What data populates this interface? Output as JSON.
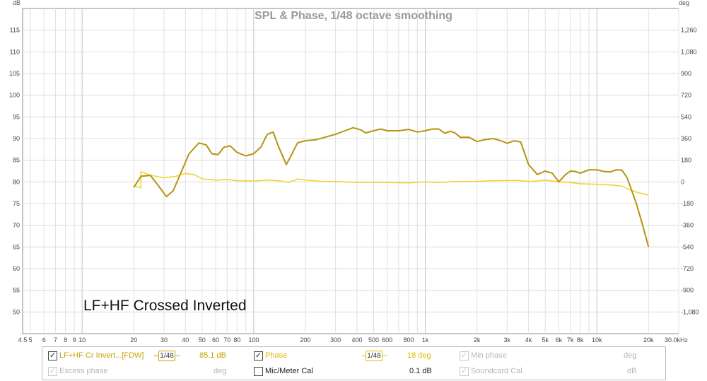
{
  "chart_data": {
    "type": "line",
    "title": "SPL & Phase, 1/48 octave smoothing",
    "annotation": "LF+HF Crossed Inverted",
    "y_left_unit": "dB",
    "y_right_unit": "deg",
    "x_unit": "Hz",
    "x_scale": "log",
    "grid": true,
    "xlim": [
      4.5,
      30000
    ],
    "ylim_left": [
      45,
      120
    ],
    "ylim_right": [
      -1260,
      1440
    ],
    "y_left_ticks": [
      "115",
      "110",
      "105",
      "100",
      "95",
      "90",
      "85",
      "80",
      "75",
      "70",
      "65",
      "60",
      "55",
      "50"
    ],
    "y_right_ticks": [
      "1,260",
      "1,080",
      "900",
      "720",
      "540",
      "360",
      "180",
      "0",
      "-180",
      "-360",
      "-540",
      "-720",
      "-900",
      "-1,080"
    ],
    "x_tick_labels": [
      {
        "v": 4.5,
        "t": "4.5"
      },
      {
        "v": 5,
        "t": "5"
      },
      {
        "v": 6,
        "t": "6"
      },
      {
        "v": 7,
        "t": "7"
      },
      {
        "v": 8,
        "t": "8"
      },
      {
        "v": 9,
        "t": "9"
      },
      {
        "v": 10,
        "t": "10"
      },
      {
        "v": 20,
        "t": "20"
      },
      {
        "v": 30,
        "t": "30"
      },
      {
        "v": 40,
        "t": "40"
      },
      {
        "v": 50,
        "t": "50"
      },
      {
        "v": 60,
        "t": "60"
      },
      {
        "v": 70,
        "t": "70"
      },
      {
        "v": 80,
        "t": "80"
      },
      {
        "v": 100,
        "t": "100"
      },
      {
        "v": 200,
        "t": "200"
      },
      {
        "v": 300,
        "t": "300"
      },
      {
        "v": 400,
        "t": "400"
      },
      {
        "v": 500,
        "t": "500"
      },
      {
        "v": 600,
        "t": "600"
      },
      {
        "v": 800,
        "t": "800"
      },
      {
        "v": 1000,
        "t": "1k"
      },
      {
        "v": 2000,
        "t": "2k"
      },
      {
        "v": 3000,
        "t": "3k"
      },
      {
        "v": 4000,
        "t": "4k"
      },
      {
        "v": 5000,
        "t": "5k"
      },
      {
        "v": 6000,
        "t": "6k"
      },
      {
        "v": 7000,
        "t": "7k"
      },
      {
        "v": 8000,
        "t": "8k"
      },
      {
        "v": 10000,
        "t": "10k"
      },
      {
        "v": 20000,
        "t": "20k"
      },
      {
        "v": 30000,
        "t": "30.0k"
      }
    ],
    "series": [
      {
        "name": "LF+HF Cr Invert...[FDW]",
        "axis": "left",
        "color": "#b59410",
        "points": [
          [
            20,
            78.7
          ],
          [
            22,
            81.3
          ],
          [
            25,
            81.5
          ],
          [
            28,
            79.0
          ],
          [
            31,
            76.6
          ],
          [
            34,
            78.0
          ],
          [
            38,
            82.5
          ],
          [
            42,
            86.5
          ],
          [
            48,
            89.0
          ],
          [
            53,
            88.5
          ],
          [
            57,
            86.5
          ],
          [
            62,
            86.3
          ],
          [
            67,
            88.0
          ],
          [
            73,
            88.3
          ],
          [
            80,
            86.8
          ],
          [
            90,
            86.0
          ],
          [
            100,
            86.5
          ],
          [
            110,
            88.0
          ],
          [
            120,
            91.0
          ],
          [
            130,
            91.5
          ],
          [
            140,
            88.0
          ],
          [
            155,
            84.0
          ],
          [
            165,
            86.0
          ],
          [
            180,
            89.0
          ],
          [
            200,
            89.5
          ],
          [
            230,
            89.7
          ],
          [
            260,
            90.3
          ],
          [
            300,
            91.0
          ],
          [
            340,
            91.8
          ],
          [
            380,
            92.5
          ],
          [
            420,
            92.0
          ],
          [
            450,
            91.3
          ],
          [
            500,
            91.8
          ],
          [
            550,
            92.2
          ],
          [
            600,
            91.8
          ],
          [
            700,
            91.8
          ],
          [
            800,
            92.1
          ],
          [
            900,
            91.5
          ],
          [
            1000,
            91.8
          ],
          [
            1100,
            92.2
          ],
          [
            1200,
            92.2
          ],
          [
            1300,
            91.2
          ],
          [
            1400,
            91.7
          ],
          [
            1500,
            91.2
          ],
          [
            1600,
            90.3
          ],
          [
            1800,
            90.3
          ],
          [
            2000,
            89.3
          ],
          [
            2200,
            89.7
          ],
          [
            2500,
            90.0
          ],
          [
            2800,
            89.4
          ],
          [
            3000,
            88.9
          ],
          [
            3300,
            89.5
          ],
          [
            3600,
            89.2
          ],
          [
            4000,
            84.0
          ],
          [
            4500,
            81.7
          ],
          [
            5000,
            82.5
          ],
          [
            5500,
            82.0
          ],
          [
            6000,
            80.0
          ],
          [
            6500,
            81.5
          ],
          [
            7000,
            82.5
          ],
          [
            7500,
            82.4
          ],
          [
            8000,
            82.0
          ],
          [
            9000,
            82.8
          ],
          [
            10000,
            82.8
          ],
          [
            11000,
            82.4
          ],
          [
            12000,
            82.3
          ],
          [
            13000,
            82.8
          ],
          [
            14000,
            82.7
          ],
          [
            15000,
            81.0
          ],
          [
            17000,
            75.0
          ],
          [
            18500,
            70.0
          ],
          [
            20000,
            65.0
          ]
        ]
      },
      {
        "name": "Phase",
        "axis": "right",
        "color": "#f2d337",
        "points": [
          [
            20,
            -30
          ],
          [
            22,
            -50
          ],
          [
            22,
            85
          ],
          [
            25,
            55
          ],
          [
            30,
            35
          ],
          [
            35,
            45
          ],
          [
            40,
            70
          ],
          [
            45,
            60
          ],
          [
            50,
            25
          ],
          [
            60,
            15
          ],
          [
            70,
            20
          ],
          [
            80,
            10
          ],
          [
            100,
            8
          ],
          [
            120,
            15
          ],
          [
            140,
            10
          ],
          [
            160,
            -5
          ],
          [
            180,
            25
          ],
          [
            200,
            15
          ],
          [
            250,
            5
          ],
          [
            300,
            3
          ],
          [
            400,
            -5
          ],
          [
            500,
            -3
          ],
          [
            600,
            -5
          ],
          [
            800,
            -8
          ],
          [
            1000,
            0
          ],
          [
            1200,
            -5
          ],
          [
            1500,
            3
          ],
          [
            2000,
            5
          ],
          [
            2500,
            10
          ],
          [
            3000,
            12
          ],
          [
            3500,
            12
          ],
          [
            4000,
            3
          ],
          [
            4500,
            8
          ],
          [
            5000,
            15
          ],
          [
            6000,
            0
          ],
          [
            7000,
            -5
          ],
          [
            8000,
            -15
          ],
          [
            10000,
            -20
          ],
          [
            12000,
            -25
          ],
          [
            14000,
            -35
          ],
          [
            15000,
            -55
          ],
          [
            17000,
            -85
          ],
          [
            20000,
            -110
          ]
        ]
      }
    ]
  },
  "legend": {
    "items": [
      {
        "label": "LF+HF Cr Invert...[FDW]",
        "checked": true,
        "enabled": true,
        "smoothing": "1/48",
        "value": "85.1 dB",
        "color": "#c8a200"
      },
      {
        "label": "Phase",
        "checked": true,
        "enabled": true,
        "smoothing": "1/48",
        "value": "18 deg",
        "color": "#e0b800"
      },
      {
        "label": "Min phase",
        "checked": true,
        "enabled": false,
        "value": "deg"
      },
      {
        "label": "Excess phase",
        "checked": true,
        "enabled": false,
        "value": "deg"
      },
      {
        "label": "Mic/Meter Cal",
        "checked": false,
        "enabled": true,
        "value": "0.1 dB"
      },
      {
        "label": "Soundcard Cal",
        "checked": true,
        "enabled": false,
        "value": "dB"
      }
    ]
  }
}
